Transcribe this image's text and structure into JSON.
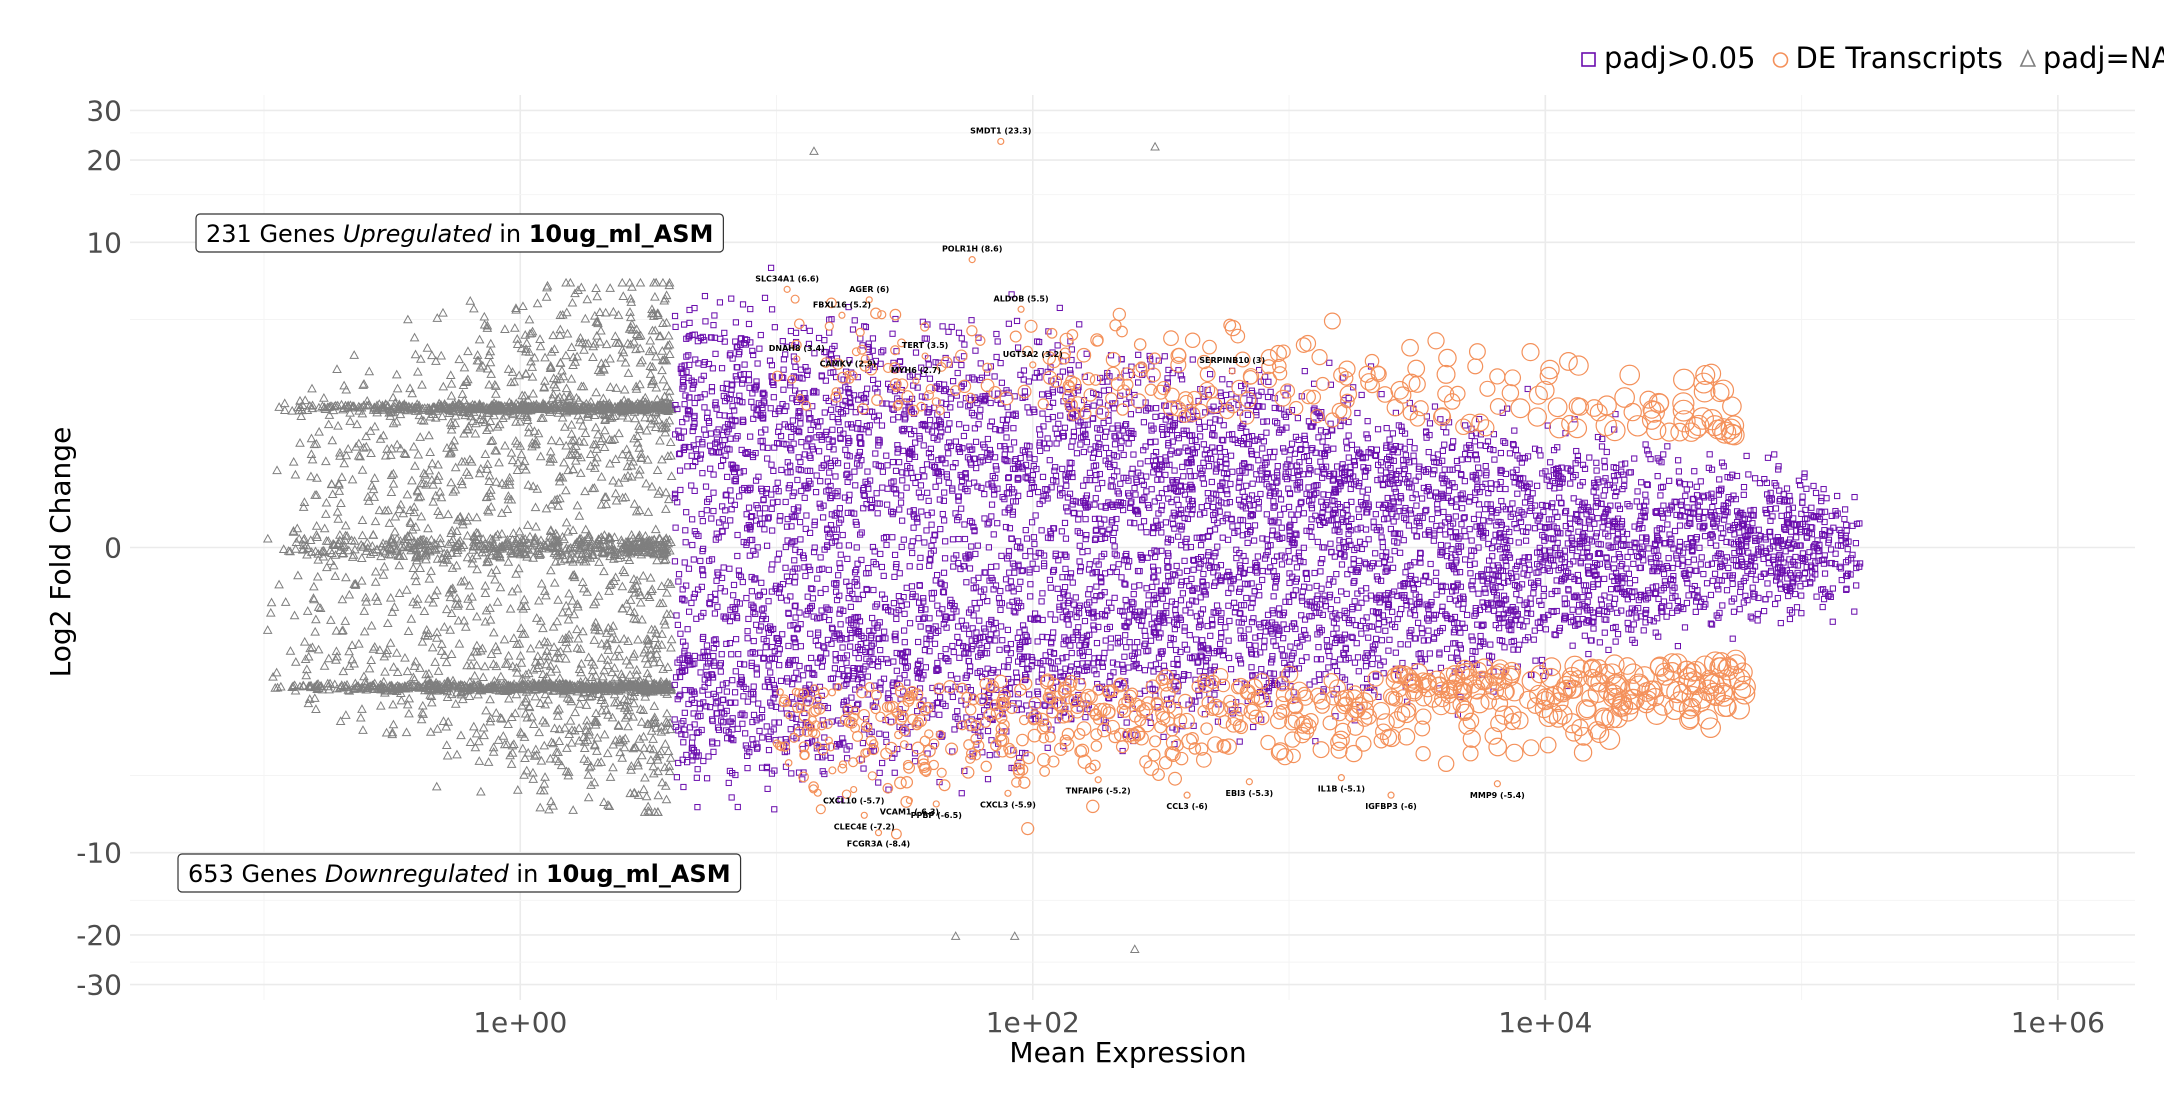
{
  "chart_data": {
    "type": "scatter",
    "title": "",
    "xlabel": "Mean Expression",
    "ylabel": "Log2 Fold Change",
    "x_scale": "log10",
    "y_scale": "pseudo-log",
    "xlim": [
      0.03,
      2000000
    ],
    "ylim": [
      -34,
      34
    ],
    "x_ticks": [
      {
        "value": 1,
        "label": "1e+00"
      },
      {
        "value": 100,
        "label": "1e+02"
      },
      {
        "value": 10000,
        "label": "1e+04"
      },
      {
        "value": 1000000,
        "label": "1e+06"
      }
    ],
    "y_ticks": [
      {
        "value": 30,
        "label": "30"
      },
      {
        "value": 20,
        "label": "20"
      },
      {
        "value": 10,
        "label": "10"
      },
      {
        "value": 0,
        "label": "0"
      },
      {
        "value": -10,
        "label": "-10"
      },
      {
        "value": -20,
        "label": "-20"
      },
      {
        "value": -30,
        "label": "-30"
      }
    ],
    "grid": true,
    "legend_position": "top-right",
    "legend": [
      {
        "name": "padj>0.05",
        "shape": "square",
        "color": "#6a0dad"
      },
      {
        "name": "DE Transcripts",
        "shape": "circle",
        "color": "#f4915b"
      },
      {
        "name": "padj=NA",
        "shape": "triangle",
        "color": "#7f7f7f"
      }
    ],
    "summaries": [
      {
        "count": "231 Genes",
        "direction": "Upregulated",
        "connector": "in",
        "group": "10ug_ml_ASM",
        "y": 12.5
      },
      {
        "count": "653 Genes",
        "direction": "Downregulated",
        "connector": "in",
        "group": "10ug_ml_ASM",
        "y": -12.5
      }
    ],
    "labeled_genes": [
      {
        "label": "SMDT1 (23.3)",
        "x": 75,
        "y": 23.3
      },
      {
        "label": "POLR1H (8.6)",
        "x": 58,
        "y": 8.6
      },
      {
        "label": "SLC34A1 (6.6)",
        "x": 11,
        "y": 6.6
      },
      {
        "label": "AGER (6)",
        "x": 23,
        "y": 6.0
      },
      {
        "label": "FBXL16 (5.2)",
        "x": 18,
        "y": 5.2
      },
      {
        "label": "ALDOB (5.5)",
        "x": 90,
        "y": 5.5
      },
      {
        "label": "DNAH8 (3.4)",
        "x": 12,
        "y": 3.4
      },
      {
        "label": "CAMKV (2.9)",
        "x": 19,
        "y": 2.9
      },
      {
        "label": "TERT (3.5)",
        "x": 38,
        "y": 3.5
      },
      {
        "label": "UGT3A2 (3.2)",
        "x": 100,
        "y": 3.2
      },
      {
        "label": "SERPINB10 (3)",
        "x": 600,
        "y": 3.0
      },
      {
        "label": "MYH6 (2.7)",
        "x": 35,
        "y": 2.7
      },
      {
        "label": "CXCL10 (-5.7)",
        "x": 20,
        "y": -5.7
      },
      {
        "label": "VCAM1 (-6.3)",
        "x": 33,
        "y": -6.3
      },
      {
        "label": "CLEC4E (-7.2)",
        "x": 22,
        "y": -7.2
      },
      {
        "label": "PPBP (-6.5)",
        "x": 42,
        "y": -6.5
      },
      {
        "label": "FCGR3A (-8.4)",
        "x": 25,
        "y": -8.4
      },
      {
        "label": "CXCL3 (-5.9)",
        "x": 80,
        "y": -5.9
      },
      {
        "label": "TNFAIP6 (-5.2)",
        "x": 180,
        "y": -5.2
      },
      {
        "label": "CCL3 (-6)",
        "x": 400,
        "y": -6.0
      },
      {
        "label": "EBI3 (-5.3)",
        "x": 700,
        "y": -5.3
      },
      {
        "label": "IL1B (-5.1)",
        "x": 1600,
        "y": -5.1
      },
      {
        "label": "IGFBP3 (-6)",
        "x": 2500,
        "y": -6.0
      },
      {
        "label": "MMP9 (-5.4)",
        "x": 6500,
        "y": -5.4
      }
    ],
    "series": [
      {
        "name": "padj>0.05",
        "description_range_x": [
          4,
          400000
        ],
        "points_count_approx": 14000
      },
      {
        "name": "DE Transcripts",
        "points_count_approx": 884
      },
      {
        "name": "padj=NA",
        "description_range_x": [
          0.1,
          4
        ],
        "points_count_approx": 5000
      }
    ],
    "outliers": [
      {
        "series": "padj=NA",
        "x": 14,
        "y": 21.5
      },
      {
        "series": "padj=NA",
        "x": 300,
        "y": 22.3
      },
      {
        "series": "padj=NA",
        "x": 50,
        "y": -20.2
      },
      {
        "series": "padj=NA",
        "x": 85,
        "y": -20.2
      },
      {
        "series": "padj=NA",
        "x": 250,
        "y": -22.5
      }
    ]
  }
}
